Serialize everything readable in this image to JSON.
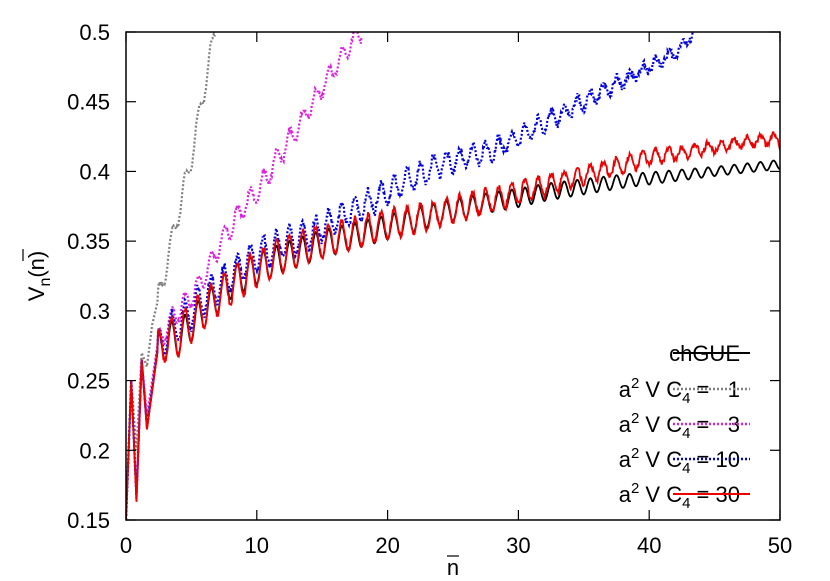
{
  "chart_data": {
    "type": "line",
    "title": "",
    "xlabel": "n",
    "ylabel_main": "V",
    "ylabel_sub": "n",
    "ylabel_arg": "(n)",
    "xlim": [
      0,
      50
    ],
    "ylim": [
      0.15,
      0.5
    ],
    "xticks": [
      0,
      10,
      20,
      30,
      40,
      50
    ],
    "xtick_labels": [
      "0",
      "10",
      "20",
      "30",
      "40",
      "50"
    ],
    "yticks": [
      0.15,
      0.2,
      0.25,
      0.3,
      0.35,
      0.4,
      0.45,
      0.5
    ],
    "ytick_labels": [
      "0.15",
      "0.2",
      "0.25",
      "0.3",
      "0.35",
      "0.4",
      "0.45",
      "0.5"
    ],
    "grid": false,
    "legend_position": "bottom-right",
    "series": [
      {
        "legend_plain": "chGUE",
        "legend_prefix": "",
        "legend_suffix": "",
        "value": "",
        "color": "#000000",
        "style": "solid",
        "x": [
          0,
          0.4,
          0.8,
          1.2,
          1.6,
          2.4,
          3.2,
          4,
          5,
          6,
          8,
          10,
          12,
          15,
          18,
          20,
          22,
          24,
          26,
          28,
          30,
          32,
          35,
          38,
          40,
          42,
          45,
          48,
          50
        ],
        "y": [
          0.15,
          0.25,
          0.165,
          0.265,
          0.215,
          0.27,
          0.28,
          0.28,
          0.29,
          0.3,
          0.32,
          0.33,
          0.338,
          0.348,
          0.355,
          0.36,
          0.365,
          0.37,
          0.374,
          0.378,
          0.381,
          0.385,
          0.389,
          0.393,
          0.395,
          0.397,
          0.4,
          0.403,
          0.405
        ]
      },
      {
        "legend_plain": "",
        "legend_prefix": "a",
        "legend_suffix": " V C",
        "value": "1",
        "color": "#808080",
        "style": "dotted",
        "x": [
          0,
          0.4,
          0.8,
          1.2,
          1.6,
          2,
          2.5,
          3,
          3.5,
          4,
          4.5,
          5,
          5.5,
          6,
          6.5,
          6.8
        ],
        "y": [
          0.15,
          0.25,
          0.2,
          0.27,
          0.26,
          0.29,
          0.31,
          0.33,
          0.35,
          0.37,
          0.39,
          0.41,
          0.435,
          0.46,
          0.485,
          0.5
        ]
      },
      {
        "legend_plain": "",
        "legend_prefix": "a",
        "legend_suffix": " V C",
        "value": "3",
        "color": "#dd22dd",
        "style": "dotted",
        "x": [
          0,
          0.4,
          0.8,
          1.2,
          1.6,
          2.4,
          3.2,
          4,
          5,
          6,
          7,
          8,
          9,
          10,
          11,
          12,
          13,
          14,
          15,
          16,
          17,
          18
        ],
        "y": [
          0.15,
          0.25,
          0.17,
          0.265,
          0.225,
          0.275,
          0.29,
          0.3,
          0.31,
          0.325,
          0.345,
          0.36,
          0.375,
          0.385,
          0.4,
          0.415,
          0.43,
          0.445,
          0.46,
          0.475,
          0.49,
          0.5
        ]
      },
      {
        "legend_plain": "",
        "legend_prefix": "a",
        "legend_suffix": " V C",
        "value": "10",
        "color": "#0000dd",
        "style": "dotted",
        "x": [
          0,
          0.4,
          0.8,
          1.2,
          1.6,
          2.4,
          3.2,
          4,
          5,
          6,
          8,
          10,
          12,
          14,
          16,
          18,
          20,
          22,
          24,
          26,
          28,
          30,
          32,
          34,
          36,
          38,
          40,
          42,
          43.5
        ],
        "y": [
          0.15,
          0.25,
          0.165,
          0.265,
          0.218,
          0.272,
          0.285,
          0.29,
          0.3,
          0.31,
          0.325,
          0.34,
          0.348,
          0.355,
          0.365,
          0.375,
          0.385,
          0.395,
          0.405,
          0.41,
          0.415,
          0.425,
          0.435,
          0.445,
          0.455,
          0.465,
          0.475,
          0.485,
          0.5
        ]
      },
      {
        "legend_plain": "",
        "legend_prefix": "a",
        "legend_suffix": " V C",
        "value": "30",
        "color": "#ee0000",
        "style": "solid",
        "x": [
          0,
          0.4,
          0.8,
          1.2,
          1.6,
          2.4,
          3.2,
          4,
          5,
          6,
          8,
          10,
          12,
          14,
          16,
          18,
          20,
          22,
          24,
          26,
          28,
          30,
          32,
          34,
          36,
          38,
          40,
          42,
          44,
          46,
          48,
          50
        ],
        "y": [
          0.15,
          0.25,
          0.163,
          0.265,
          0.215,
          0.27,
          0.28,
          0.283,
          0.292,
          0.302,
          0.318,
          0.33,
          0.34,
          0.348,
          0.352,
          0.357,
          0.362,
          0.366,
          0.37,
          0.375,
          0.38,
          0.385,
          0.39,
          0.395,
          0.4,
          0.405,
          0.41,
          0.413,
          0.416,
          0.419,
          0.422,
          0.423
        ]
      }
    ]
  }
}
